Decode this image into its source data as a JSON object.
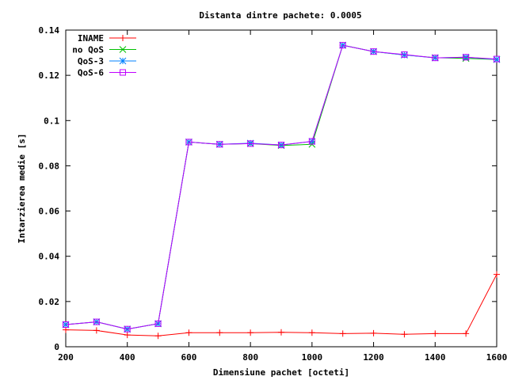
{
  "chart_data": {
    "type": "line",
    "title": "Distanta dintre pachete: 0.0005",
    "xlabel": "Dimensiune pachet [octeti]",
    "ylabel": "Intarzierea medie [s]",
    "xlim": [
      200,
      1600
    ],
    "ylim": [
      0,
      0.14
    ],
    "x_ticks": [
      "200",
      "400",
      "600",
      "800",
      "1000",
      "1200",
      "1400",
      "1600"
    ],
    "y_ticks": [
      "0",
      "0.02",
      "0.04",
      "0.06",
      "0.08",
      "0.1",
      "0.12",
      "0.14"
    ],
    "grid": false,
    "legend_position": "top-left",
    "x": [
      200,
      300,
      400,
      500,
      600,
      700,
      800,
      900,
      1000,
      1100,
      1200,
      1300,
      1400,
      1500,
      1600
    ],
    "series": [
      {
        "name": "INAME",
        "color": "#ff0000",
        "marker": "plus",
        "values": [
          0.0075,
          0.0072,
          0.0052,
          0.0048,
          0.0062,
          0.0062,
          0.0062,
          0.0064,
          0.0062,
          0.0058,
          0.006,
          0.0055,
          0.0058,
          0.0058,
          0.032
        ]
      },
      {
        "name": "no QoS",
        "color": "#00c000",
        "marker": "cross",
        "values": [
          0.0098,
          0.011,
          0.0078,
          0.0102,
          0.0905,
          0.0895,
          0.0898,
          0.089,
          0.0895,
          0.1333,
          0.1305,
          0.129,
          0.1278,
          0.1275,
          0.127
        ]
      },
      {
        "name": "QoS-3",
        "color": "#0080ff",
        "marker": "star",
        "values": [
          0.0098,
          0.011,
          0.0078,
          0.0102,
          0.0905,
          0.0895,
          0.09,
          0.0892,
          0.0908,
          0.1333,
          0.1305,
          0.129,
          0.1277,
          0.128,
          0.127
        ]
      },
      {
        "name": "QoS-6",
        "color": "#c000ff",
        "marker": "square",
        "values": [
          0.0098,
          0.011,
          0.0078,
          0.0102,
          0.0905,
          0.0895,
          0.0898,
          0.0892,
          0.0908,
          0.1333,
          0.1305,
          0.1292,
          0.1277,
          0.128,
          0.1272
        ]
      }
    ]
  }
}
